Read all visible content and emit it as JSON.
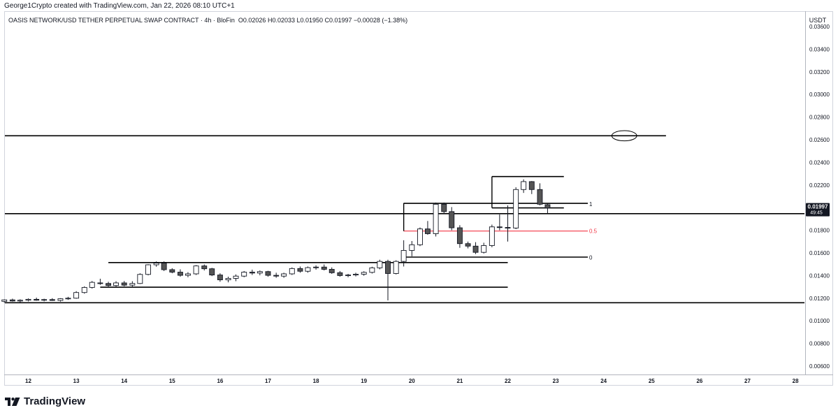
{
  "header": {
    "credit": "George1Crypto created with TradingView.com, Jan 22, 2026 08:10 UTC+1",
    "symbol": "OASIS NETWORK/USD TETHER PERPETUAL SWAP CONTRACT · 4h · BloFin",
    "ohlc": "O0.02026 H0.02033 L0.01950 C0.01997 −0.00028 (−1.38%)"
  },
  "brand": {
    "name": "TradingView"
  },
  "chart_data": {
    "type": "candlestick",
    "currency": "USDT",
    "ylim": [
      0.0054,
      0.0382
    ],
    "y_ticks": [
      "0.03600",
      "0.03400",
      "0.03200",
      "0.03000",
      "0.02800",
      "0.02600",
      "0.02400",
      "0.02200",
      "0.02000",
      "0.01800",
      "0.01600",
      "0.01400",
      "0.01200",
      "0.01000",
      "0.00800",
      "0.00600"
    ],
    "x_ticks": [
      "12",
      "13",
      "14",
      "15",
      "16",
      "17",
      "18",
      "19",
      "20",
      "21",
      "22",
      "23",
      "24",
      "25",
      "26",
      "27",
      "28"
    ],
    "last_price": {
      "value": "0.01997",
      "countdown": "49:45",
      "price": 0.01997
    },
    "fib_labels": [
      {
        "text": "1",
        "price": 0.02033,
        "color": "#131722"
      },
      {
        "text": "0.5",
        "price": 0.01793,
        "color": "#f23645"
      },
      {
        "text": "0",
        "price": 0.0156,
        "color": "#131722"
      }
    ],
    "horizontal_lines": [
      {
        "price": 0.02635,
        "from_day": 11.0,
        "to_day": 25.3
      },
      {
        "price": 0.01947,
        "from_day": 11.0,
        "to_day": 28.3
      },
      {
        "price": 0.0116,
        "from_day": 11.0,
        "to_day": 28.3
      }
    ],
    "segments": [
      {
        "price": 0.01515,
        "from_day": 13.67,
        "to_day": 22.0
      },
      {
        "price": 0.01297,
        "from_day": 13.5,
        "to_day": 22.0
      },
      {
        "price": 0.02275,
        "from_day": 21.67,
        "to_day": 23.17
      },
      {
        "price": 0.02038,
        "from_day": 19.83,
        "to_day": 23.67
      },
      {
        "price": 0.01998,
        "from_day": 21.67,
        "to_day": 23.17
      },
      {
        "price": 0.01793,
        "from_day": 19.83,
        "to_day": 23.67,
        "color": "#f23645"
      },
      {
        "price": 0.01563,
        "from_day": 19.83,
        "to_day": 23.67
      },
      {
        "price": 0.0204,
        "from_day": 19.83,
        "to_day": 19.83,
        "price_end": 0.01793,
        "vertical": true
      },
      {
        "price": 0.02275,
        "from_day": 21.67,
        "to_day": 21.67,
        "price_end": 0.01998,
        "vertical": true
      }
    ],
    "ellipse": {
      "center_day": 24.43,
      "price": 0.02635,
      "rx_days": 0.26,
      "ry_price": 0.00045
    },
    "candles": [
      [
        11.0,
        0.01183,
        0.0119,
        0.0117,
        0.0118
      ],
      [
        11.17,
        0.0118,
        0.01192,
        0.01168,
        0.01178
      ],
      [
        11.33,
        0.01178,
        0.01188,
        0.01165,
        0.01172
      ],
      [
        11.5,
        0.01172,
        0.0119,
        0.0116,
        0.01185
      ],
      [
        11.67,
        0.01185,
        0.01196,
        0.0117,
        0.01175
      ],
      [
        11.83,
        0.01175,
        0.0119,
        0.01165,
        0.01182
      ],
      [
        12.0,
        0.01182,
        0.01198,
        0.01172,
        0.0119
      ],
      [
        12.17,
        0.0119,
        0.01205,
        0.01178,
        0.01182
      ],
      [
        12.33,
        0.01182,
        0.01195,
        0.01172,
        0.01188
      ],
      [
        12.5,
        0.01188,
        0.012,
        0.01176,
        0.0118
      ],
      [
        12.67,
        0.0118,
        0.012,
        0.0117,
        0.01195
      ],
      [
        12.83,
        0.01195,
        0.01212,
        0.01185,
        0.012
      ],
      [
        13.0,
        0.012,
        0.01262,
        0.01195,
        0.0125
      ],
      [
        13.17,
        0.0125,
        0.01305,
        0.0124,
        0.01295
      ],
      [
        13.33,
        0.01295,
        0.01352,
        0.01285,
        0.0134
      ],
      [
        13.5,
        0.01335,
        0.01372,
        0.01318,
        0.0133
      ],
      [
        13.67,
        0.0133,
        0.01345,
        0.01302,
        0.01312
      ],
      [
        13.83,
        0.01312,
        0.0135,
        0.013,
        0.01335
      ],
      [
        14.0,
        0.01335,
        0.01352,
        0.01305,
        0.01315
      ],
      [
        14.17,
        0.01315,
        0.0135,
        0.01302,
        0.0133
      ],
      [
        14.33,
        0.0133,
        0.0142,
        0.01325,
        0.0141
      ],
      [
        14.5,
        0.0141,
        0.015,
        0.01402,
        0.01495
      ],
      [
        14.67,
        0.01495,
        0.01525,
        0.01478,
        0.0151
      ],
      [
        14.83,
        0.0151,
        0.01525,
        0.0144,
        0.01452
      ],
      [
        15.0,
        0.01452,
        0.01465,
        0.0142,
        0.0143
      ],
      [
        15.17,
        0.0143,
        0.01455,
        0.0139,
        0.01402
      ],
      [
        15.33,
        0.01402,
        0.0143,
        0.01385,
        0.01415
      ],
      [
        15.5,
        0.01415,
        0.01492,
        0.01405,
        0.01485
      ],
      [
        15.67,
        0.01485,
        0.01498,
        0.01445,
        0.0146
      ],
      [
        15.83,
        0.0146,
        0.01468,
        0.01395,
        0.01405
      ],
      [
        16.0,
        0.01405,
        0.0142,
        0.01345,
        0.01362
      ],
      [
        16.17,
        0.01362,
        0.0139,
        0.0134,
        0.01375
      ],
      [
        16.33,
        0.01375,
        0.0141,
        0.0135,
        0.01395
      ],
      [
        16.5,
        0.01395,
        0.0144,
        0.01385,
        0.0143
      ],
      [
        16.67,
        0.0143,
        0.01452,
        0.01405,
        0.01422
      ],
      [
        16.83,
        0.01422,
        0.01445,
        0.01402,
        0.01435
      ],
      [
        17.0,
        0.01435,
        0.01442,
        0.0139,
        0.01402
      ],
      [
        17.17,
        0.01402,
        0.01425,
        0.0138,
        0.01395
      ],
      [
        17.33,
        0.01395,
        0.01425,
        0.0138,
        0.01415
      ],
      [
        17.5,
        0.01415,
        0.01472,
        0.01405,
        0.01462
      ],
      [
        17.67,
        0.01462,
        0.0148,
        0.01425,
        0.01438
      ],
      [
        17.83,
        0.01438,
        0.0148,
        0.01425,
        0.0147
      ],
      [
        18.0,
        0.0147,
        0.0149,
        0.01452,
        0.01475
      ],
      [
        18.17,
        0.01475,
        0.01498,
        0.01445,
        0.01455
      ],
      [
        18.33,
        0.01455,
        0.01472,
        0.01415,
        0.01425
      ],
      [
        18.5,
        0.01425,
        0.0144,
        0.0139,
        0.014
      ],
      [
        18.67,
        0.014,
        0.01415,
        0.01385,
        0.01405
      ],
      [
        18.83,
        0.01405,
        0.01425,
        0.01392,
        0.01412
      ],
      [
        19.0,
        0.01412,
        0.01438,
        0.01398,
        0.01428
      ],
      [
        19.17,
        0.01428,
        0.01478,
        0.01418,
        0.01468
      ],
      [
        19.33,
        0.01468,
        0.0154,
        0.01455,
        0.01525
      ],
      [
        19.5,
        0.01525,
        0.0154,
        0.0118,
        0.01418
      ],
      [
        19.67,
        0.01418,
        0.01535,
        0.0141,
        0.01525
      ],
      [
        19.83,
        0.01525,
        0.01712,
        0.0148,
        0.01622
      ],
      [
        20.0,
        0.01622,
        0.01705,
        0.0157,
        0.01672
      ],
      [
        20.17,
        0.01672,
        0.01825,
        0.0166,
        0.01812
      ],
      [
        20.33,
        0.01812,
        0.01882,
        0.0176,
        0.0177
      ],
      [
        20.5,
        0.0177,
        0.02045,
        0.01745,
        0.0203
      ],
      [
        20.67,
        0.0203,
        0.02045,
        0.01945,
        0.01965
      ],
      [
        20.83,
        0.01965,
        0.02005,
        0.018,
        0.01822
      ],
      [
        21.0,
        0.01822,
        0.01845,
        0.01645,
        0.01682
      ],
      [
        21.17,
        0.01682,
        0.017,
        0.0164,
        0.0166
      ],
      [
        21.33,
        0.0166,
        0.01695,
        0.0159,
        0.01605
      ],
      [
        21.5,
        0.01605,
        0.0169,
        0.01595,
        0.01665
      ],
      [
        21.67,
        0.01665,
        0.0185,
        0.0165,
        0.0183
      ],
      [
        21.83,
        0.0183,
        0.0194,
        0.018,
        0.01825
      ],
      [
        22.0,
        0.01825,
        0.0202,
        0.017,
        0.0182
      ],
      [
        22.17,
        0.0182,
        0.0218,
        0.0181,
        0.0216
      ],
      [
        22.33,
        0.0216,
        0.0225,
        0.0213,
        0.0223
      ],
      [
        22.5,
        0.0223,
        0.02235,
        0.0212,
        0.0216
      ],
      [
        22.67,
        0.0216,
        0.02215,
        0.0202,
        0.0203
      ],
      [
        22.83,
        0.02026,
        0.02033,
        0.0195,
        0.01997
      ]
    ]
  }
}
